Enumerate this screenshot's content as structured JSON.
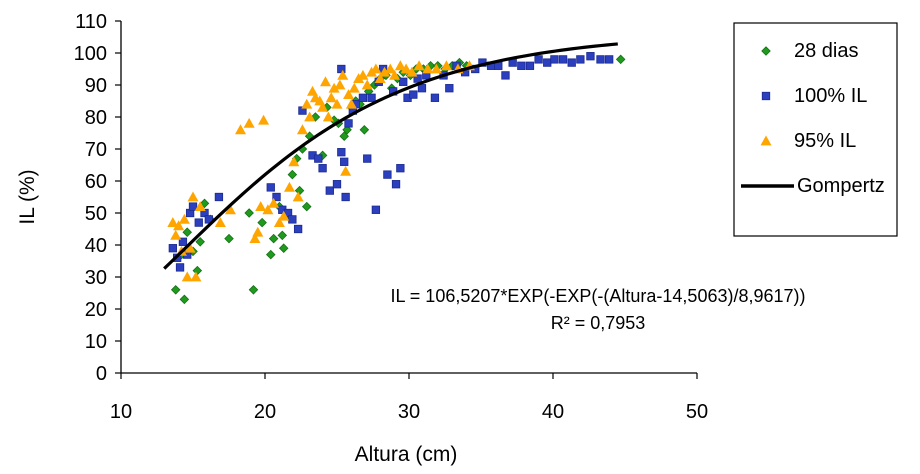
{
  "colors": {
    "series_28_dias": "#1f9a1f",
    "series_100_il": "#2b3fbf",
    "series_95_il": "#ffa500",
    "gompertz": "#000000"
  },
  "chart_data": {
    "type": "scatter",
    "xlabel": "Altura (cm)",
    "ylabel": "IL (%)",
    "xlim": [
      10,
      50
    ],
    "ylim": [
      0,
      110
    ],
    "x_ticks": [
      "10",
      "20",
      "30",
      "40",
      "50"
    ],
    "y_ticks": [
      "0",
      "10",
      "20",
      "30",
      "40",
      "50",
      "60",
      "70",
      "80",
      "90",
      "100",
      "110"
    ],
    "grid": false,
    "legend_position": "right",
    "equation": "IL = 106,5207*EXP(-EXP(-(Altura-14,5063)/8,9617))",
    "r_squared": "R² = 0,7953",
    "series": [
      {
        "name": "28 dias",
        "marker": "diamond",
        "color": "#1f9a1f",
        "points": [
          [
            13.8,
            26
          ],
          [
            14.2,
            37
          ],
          [
            14.4,
            23
          ],
          [
            14.6,
            44
          ],
          [
            15.0,
            38
          ],
          [
            15.3,
            32
          ],
          [
            15.5,
            41
          ],
          [
            15.8,
            53
          ],
          [
            16.2,
            48
          ],
          [
            17.5,
            42
          ],
          [
            18.9,
            50
          ],
          [
            19.2,
            26
          ],
          [
            19.8,
            47
          ],
          [
            20.4,
            37
          ],
          [
            20.6,
            42
          ],
          [
            21.0,
            52
          ],
          [
            21.2,
            43
          ],
          [
            21.3,
            39
          ],
          [
            21.6,
            49
          ],
          [
            21.9,
            62
          ],
          [
            22.2,
            67
          ],
          [
            22.4,
            57
          ],
          [
            22.6,
            70
          ],
          [
            22.9,
            52
          ],
          [
            23.1,
            74
          ],
          [
            23.5,
            80
          ],
          [
            24.0,
            68
          ],
          [
            24.3,
            83
          ],
          [
            24.8,
            79
          ],
          [
            25.1,
            78
          ],
          [
            25.5,
            74
          ],
          [
            25.7,
            76
          ],
          [
            26.0,
            83
          ],
          [
            26.3,
            85
          ],
          [
            26.6,
            84
          ],
          [
            26.9,
            76
          ],
          [
            27.2,
            88
          ],
          [
            27.6,
            90
          ],
          [
            28.0,
            92
          ],
          [
            28.4,
            93
          ],
          [
            28.8,
            89
          ],
          [
            29.2,
            92
          ],
          [
            29.6,
            94
          ],
          [
            30.1,
            93
          ],
          [
            30.5,
            95
          ],
          [
            31.0,
            95
          ],
          [
            31.5,
            96
          ],
          [
            32.0,
            96
          ],
          [
            32.5,
            95
          ],
          [
            33.0,
            96
          ],
          [
            33.5,
            97
          ],
          [
            34.0,
            96
          ],
          [
            44.7,
            98
          ]
        ]
      },
      {
        "name": "100% IL",
        "marker": "square",
        "color": "#2b3fbf",
        "points": [
          [
            13.6,
            39
          ],
          [
            13.9,
            36
          ],
          [
            14.1,
            33
          ],
          [
            14.3,
            41
          ],
          [
            14.6,
            37
          ],
          [
            14.8,
            50
          ],
          [
            15.0,
            52
          ],
          [
            15.4,
            47
          ],
          [
            15.8,
            50
          ],
          [
            16.1,
            48
          ],
          [
            16.8,
            55
          ],
          [
            20.4,
            58
          ],
          [
            20.8,
            55
          ],
          [
            21.2,
            51
          ],
          [
            21.6,
            50
          ],
          [
            21.9,
            48
          ],
          [
            22.3,
            45
          ],
          [
            22.6,
            82
          ],
          [
            23.3,
            68
          ],
          [
            23.7,
            67
          ],
          [
            24.0,
            64
          ],
          [
            24.5,
            57
          ],
          [
            25.0,
            59
          ],
          [
            25.3,
            69
          ],
          [
            25.5,
            66
          ],
          [
            25.6,
            55
          ],
          [
            25.8,
            78
          ],
          [
            26.1,
            82
          ],
          [
            26.3,
            84
          ],
          [
            26.8,
            86
          ],
          [
            27.1,
            67
          ],
          [
            27.4,
            86
          ],
          [
            27.7,
            51
          ],
          [
            27.9,
            91
          ],
          [
            28.2,
            95
          ],
          [
            28.5,
            62
          ],
          [
            28.9,
            88
          ],
          [
            29.1,
            59
          ],
          [
            29.4,
            64
          ],
          [
            29.6,
            91
          ],
          [
            29.9,
            86
          ],
          [
            30.3,
            87
          ],
          [
            30.6,
            92
          ],
          [
            30.9,
            89
          ],
          [
            31.2,
            93
          ],
          [
            31.8,
            86
          ],
          [
            32.4,
            93
          ],
          [
            32.8,
            89
          ],
          [
            33.3,
            96
          ],
          [
            33.9,
            94
          ],
          [
            34.6,
            95
          ],
          [
            35.1,
            97
          ],
          [
            35.7,
            96
          ],
          [
            36.2,
            96
          ],
          [
            36.7,
            93
          ],
          [
            37.2,
            97
          ],
          [
            37.8,
            96
          ],
          [
            38.4,
            96
          ],
          [
            39.0,
            98
          ],
          [
            39.6,
            97
          ],
          [
            40.1,
            98
          ],
          [
            40.7,
            98
          ],
          [
            41.3,
            97
          ],
          [
            41.9,
            98
          ],
          [
            42.6,
            99
          ],
          [
            43.3,
            98
          ],
          [
            43.9,
            98
          ],
          [
            25.3,
            95
          ]
        ]
      },
      {
        "name": "95% IL",
        "marker": "triangle",
        "color": "#ffa500",
        "points": [
          [
            13.6,
            47
          ],
          [
            13.8,
            43
          ],
          [
            14.0,
            46
          ],
          [
            14.2,
            38
          ],
          [
            14.4,
            48
          ],
          [
            14.6,
            30
          ],
          [
            14.8,
            39
          ],
          [
            15.0,
            55
          ],
          [
            15.2,
            30
          ],
          [
            15.5,
            52
          ],
          [
            16.9,
            47
          ],
          [
            17.6,
            51
          ],
          [
            18.3,
            76
          ],
          [
            18.9,
            78
          ],
          [
            19.3,
            42
          ],
          [
            19.5,
            44
          ],
          [
            19.7,
            52
          ],
          [
            19.9,
            79
          ],
          [
            20.2,
            51
          ],
          [
            20.6,
            53
          ],
          [
            21.0,
            47
          ],
          [
            21.3,
            49
          ],
          [
            21.7,
            58
          ],
          [
            22.0,
            66
          ],
          [
            22.3,
            55
          ],
          [
            22.6,
            76
          ],
          [
            22.9,
            84
          ],
          [
            23.1,
            80
          ],
          [
            23.3,
            88
          ],
          [
            23.5,
            86
          ],
          [
            23.8,
            85
          ],
          [
            24.0,
            83
          ],
          [
            24.2,
            91
          ],
          [
            24.4,
            80
          ],
          [
            24.6,
            86
          ],
          [
            24.8,
            89
          ],
          [
            25.0,
            84
          ],
          [
            25.2,
            90
          ],
          [
            25.4,
            93
          ],
          [
            25.6,
            63
          ],
          [
            25.8,
            87
          ],
          [
            26.0,
            84
          ],
          [
            26.2,
            89
          ],
          [
            26.5,
            92
          ],
          [
            26.8,
            93
          ],
          [
            27.1,
            90
          ],
          [
            27.4,
            94
          ],
          [
            27.7,
            95
          ],
          [
            28.0,
            92
          ],
          [
            28.3,
            94
          ],
          [
            28.7,
            95
          ],
          [
            29.0,
            93
          ],
          [
            29.4,
            96
          ],
          [
            29.8,
            95
          ],
          [
            30.2,
            94
          ],
          [
            30.7,
            96
          ],
          [
            31.3,
            95
          ],
          [
            31.9,
            95
          ],
          [
            32.6,
            96
          ],
          [
            33.4,
            95
          ],
          [
            34.2,
            96
          ]
        ]
      },
      {
        "name": "Gompertz",
        "marker": "line",
        "color": "#000000",
        "model": {
          "a": 106.5207,
          "b": 14.5063,
          "c": 8.9617,
          "x_range": [
            13.0,
            44.5
          ]
        }
      }
    ]
  }
}
